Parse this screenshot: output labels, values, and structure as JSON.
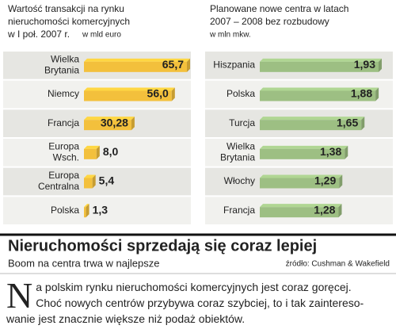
{
  "chart_data": [
    {
      "type": "bar",
      "title": [
        "Wartość transakcji na rynku",
        "nieruchomości komercyjnych",
        "w I poł. 2007 r."
      ],
      "unit": "w mld euro",
      "categories": [
        "Wielka Brytania",
        "Niemcy",
        "Francja",
        "Europa Wsch.",
        "Europa Centralna",
        "Polska"
      ],
      "values": [
        65.7,
        56.0,
        30.28,
        8.0,
        5.4,
        1.3
      ],
      "value_labels": [
        "65,7",
        "56,0",
        "30,28",
        "8,0",
        "5,4",
        "1,3"
      ],
      "color": "#f3c03c"
    },
    {
      "type": "bar",
      "title": [
        "Planowane nowe centra w latach",
        "2007 – 2008 bez rozbudowy"
      ],
      "unit": "w mln mkw.",
      "categories": [
        "Hiszpania",
        "Polska",
        "Turcja",
        "Wielka Brytania",
        "Włochy",
        "Francja"
      ],
      "values": [
        1.93,
        1.88,
        1.65,
        1.38,
        1.29,
        1.28
      ],
      "value_labels": [
        "1,93",
        "1,88",
        "1,65",
        "1,38",
        "1,29",
        "1,28"
      ],
      "color": "#9dbf83"
    }
  ],
  "headline": "Nieruchomości sprzedają się coraz lepiej",
  "subtitle": "Boom na centra trwa w najlepsze",
  "source": "źródło: Cushman & Wakefield",
  "body": [
    "Na polskim rynku nieruchomości komercyjnych jest coraz goręcej.",
    "Choć nowych centrów przybywa coraz szybciej, to i tak zaintereso-",
    "wanie jest znacznie większe niż podaż obiektów."
  ]
}
